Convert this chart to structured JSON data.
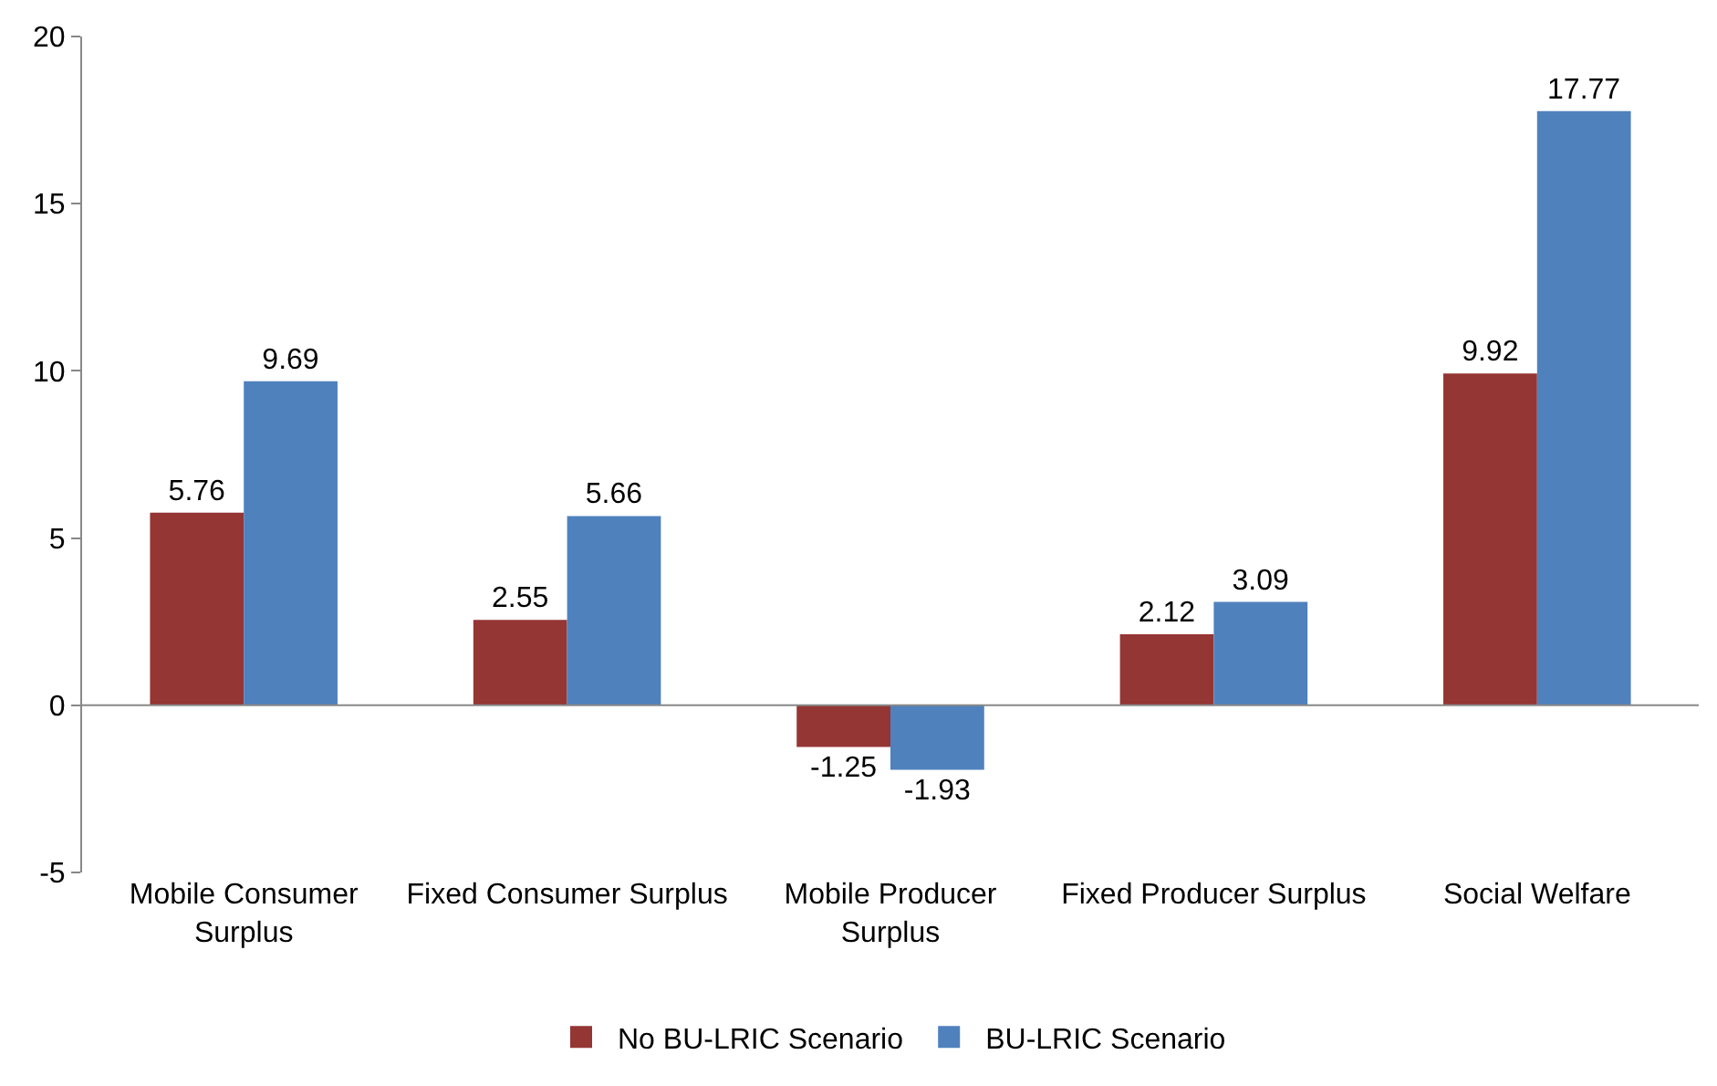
{
  "chart_data": {
    "type": "bar",
    "categories": [
      "Mobile Consumer Surplus",
      "Fixed Consumer Surplus",
      "Mobile Producer Surplus",
      "Fixed Producer Surplus",
      "Social Welfare"
    ],
    "series": [
      {
        "name": "No BU-LRIC Scenario",
        "color": "#943634",
        "values": [
          5.76,
          2.55,
          -1.25,
          2.12,
          9.92
        ]
      },
      {
        "name": "BU-LRIC Scenario",
        "color": "#4f81bd",
        "values": [
          9.69,
          5.66,
          -1.93,
          3.09,
          17.77
        ]
      }
    ],
    "ylim": [
      -5,
      20
    ],
    "yticks": [
      -5,
      0,
      5,
      10,
      15,
      20
    ],
    "data_labels": true,
    "legend": "bottom"
  }
}
